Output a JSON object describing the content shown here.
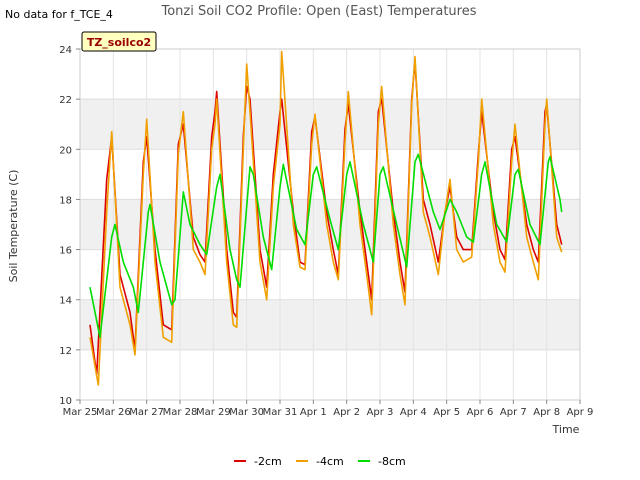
{
  "note": "No data for f_TCE_4",
  "badge": "TZ_soilco2",
  "chart_data": {
    "type": "line",
    "title": "Tonzi Soil CO2 Profile: Open (East) Temperatures",
    "xlabel": "Time",
    "ylabel": "Soil Temperature (C)",
    "xlim": [
      0,
      15
    ],
    "ylim": [
      10,
      24
    ],
    "x_ticks": [
      {
        "x": 0,
        "label": "Mar 25"
      },
      {
        "x": 1,
        "label": "Mar 26"
      },
      {
        "x": 2,
        "label": "Mar 27"
      },
      {
        "x": 3,
        "label": "Mar 28"
      },
      {
        "x": 4,
        "label": "Mar 29"
      },
      {
        "x": 5,
        "label": "Mar 30"
      },
      {
        "x": 6,
        "label": "Mar 31"
      },
      {
        "x": 7,
        "label": "Apr 1"
      },
      {
        "x": 8,
        "label": "Apr 2"
      },
      {
        "x": 9,
        "label": "Apr 3"
      },
      {
        "x": 10,
        "label": "Apr 4"
      },
      {
        "x": 11,
        "label": "Apr 5"
      },
      {
        "x": 12,
        "label": "Apr 6"
      },
      {
        "x": 13,
        "label": "Apr 7"
      },
      {
        "x": 14,
        "label": "Apr 8"
      },
      {
        "x": 15,
        "label": "Apr 9"
      }
    ],
    "y_ticks": [
      10,
      12,
      14,
      16,
      18,
      20,
      22,
      24
    ],
    "grid": true,
    "legend_position": "bottom-center",
    "x_units": "days since Mar 25 00:00",
    "series": [
      {
        "name": "-2cm",
        "color": "#dd0000",
        "points": [
          [
            0.3,
            13.0
          ],
          [
            0.5,
            11.0
          ],
          [
            0.8,
            18.8
          ],
          [
            0.95,
            20.5
          ],
          [
            1.2,
            15.0
          ],
          [
            1.5,
            13.5
          ],
          [
            1.65,
            12.0
          ],
          [
            1.9,
            19.5
          ],
          [
            2.0,
            20.5
          ],
          [
            2.25,
            16.0
          ],
          [
            2.5,
            13.0
          ],
          [
            2.75,
            12.8
          ],
          [
            2.95,
            20.2
          ],
          [
            3.1,
            21.0
          ],
          [
            3.4,
            16.5
          ],
          [
            3.6,
            15.8
          ],
          [
            3.75,
            15.5
          ],
          [
            3.95,
            20.5
          ],
          [
            4.05,
            21.5
          ],
          [
            4.1,
            22.3
          ],
          [
            4.4,
            16.0
          ],
          [
            4.6,
            13.5
          ],
          [
            4.7,
            13.3
          ],
          [
            4.9,
            20.5
          ],
          [
            5.0,
            22.5
          ],
          [
            5.1,
            22.0
          ],
          [
            5.4,
            16.0
          ],
          [
            5.6,
            14.5
          ],
          [
            5.8,
            19.0
          ],
          [
            6.0,
            21.5
          ],
          [
            6.05,
            22.0
          ],
          [
            6.4,
            17.5
          ],
          [
            6.6,
            15.5
          ],
          [
            6.75,
            15.4
          ],
          [
            6.95,
            20.7
          ],
          [
            7.05,
            21.3
          ],
          [
            7.4,
            17.5
          ],
          [
            7.6,
            16.0
          ],
          [
            7.75,
            15.0
          ],
          [
            7.95,
            20.8
          ],
          [
            8.05,
            21.8
          ],
          [
            8.4,
            17.5
          ],
          [
            8.6,
            15.5
          ],
          [
            8.75,
            14.0
          ],
          [
            8.95,
            21.5
          ],
          [
            9.05,
            22.0
          ],
          [
            9.4,
            17.5
          ],
          [
            9.6,
            15.5
          ],
          [
            9.75,
            14.3
          ],
          [
            9.95,
            22.0
          ],
          [
            10.05,
            23.5
          ],
          [
            10.3,
            18.0
          ],
          [
            10.5,
            17.0
          ],
          [
            10.75,
            15.5
          ],
          [
            10.95,
            17.5
          ],
          [
            11.1,
            18.5
          ],
          [
            11.3,
            16.5
          ],
          [
            11.5,
            16.0
          ],
          [
            11.75,
            16.0
          ],
          [
            11.95,
            19.8
          ],
          [
            12.05,
            21.5
          ],
          [
            12.4,
            17.5
          ],
          [
            12.6,
            16.0
          ],
          [
            12.75,
            15.6
          ],
          [
            12.95,
            20.0
          ],
          [
            13.05,
            20.5
          ],
          [
            13.4,
            17.0
          ],
          [
            13.6,
            16.0
          ],
          [
            13.75,
            15.5
          ],
          [
            13.95,
            21.5
          ],
          [
            14.0,
            21.8
          ],
          [
            14.3,
            17.0
          ],
          [
            14.45,
            16.2
          ]
        ]
      },
      {
        "name": "-4cm",
        "color": "#f0a000",
        "points": [
          [
            0.3,
            12.5
          ],
          [
            0.55,
            10.6
          ],
          [
            0.8,
            17.5
          ],
          [
            0.95,
            20.7
          ],
          [
            1.2,
            14.5
          ],
          [
            1.5,
            13.0
          ],
          [
            1.65,
            11.8
          ],
          [
            1.9,
            19.0
          ],
          [
            2.0,
            21.2
          ],
          [
            2.25,
            15.5
          ],
          [
            2.5,
            12.5
          ],
          [
            2.75,
            12.3
          ],
          [
            2.95,
            19.8
          ],
          [
            3.1,
            21.5
          ],
          [
            3.4,
            16.0
          ],
          [
            3.6,
            15.5
          ],
          [
            3.75,
            15.0
          ],
          [
            3.95,
            20.0
          ],
          [
            4.05,
            21.0
          ],
          [
            4.1,
            22.0
          ],
          [
            4.4,
            15.5
          ],
          [
            4.6,
            13.0
          ],
          [
            4.7,
            12.9
          ],
          [
            4.9,
            20.0
          ],
          [
            5.0,
            23.4
          ],
          [
            5.1,
            21.5
          ],
          [
            5.4,
            15.5
          ],
          [
            5.6,
            14.0
          ],
          [
            5.8,
            18.5
          ],
          [
            6.0,
            21.0
          ],
          [
            6.05,
            23.9
          ],
          [
            6.4,
            17.0
          ],
          [
            6.6,
            15.3
          ],
          [
            6.75,
            15.2
          ],
          [
            6.95,
            20.2
          ],
          [
            7.05,
            21.4
          ],
          [
            7.4,
            17.0
          ],
          [
            7.6,
            15.5
          ],
          [
            7.75,
            14.8
          ],
          [
            7.95,
            20.3
          ],
          [
            8.05,
            22.3
          ],
          [
            8.4,
            17.0
          ],
          [
            8.6,
            15.0
          ],
          [
            8.75,
            13.4
          ],
          [
            8.95,
            21.0
          ],
          [
            9.05,
            22.5
          ],
          [
            9.4,
            17.0
          ],
          [
            9.6,
            15.0
          ],
          [
            9.75,
            13.8
          ],
          [
            9.95,
            21.8
          ],
          [
            10.05,
            23.7
          ],
          [
            10.3,
            17.5
          ],
          [
            10.5,
            16.5
          ],
          [
            10.75,
            15.0
          ],
          [
            10.95,
            17.5
          ],
          [
            11.1,
            18.8
          ],
          [
            11.3,
            16.0
          ],
          [
            11.5,
            15.5
          ],
          [
            11.75,
            15.7
          ],
          [
            11.95,
            19.5
          ],
          [
            12.05,
            22.0
          ],
          [
            12.4,
            17.0
          ],
          [
            12.6,
            15.5
          ],
          [
            12.75,
            15.1
          ],
          [
            12.95,
            19.5
          ],
          [
            13.05,
            21.0
          ],
          [
            13.4,
            16.5
          ],
          [
            13.6,
            15.5
          ],
          [
            13.75,
            14.8
          ],
          [
            13.95,
            21.0
          ],
          [
            14.0,
            22.0
          ],
          [
            14.3,
            16.5
          ],
          [
            14.45,
            15.9
          ]
        ]
      },
      {
        "name": "-8cm",
        "color": "#00dd00",
        "points": [
          [
            0.3,
            14.5
          ],
          [
            0.6,
            12.5
          ],
          [
            0.95,
            16.5
          ],
          [
            1.05,
            17.0
          ],
          [
            1.3,
            15.5
          ],
          [
            1.6,
            14.5
          ],
          [
            1.75,
            13.5
          ],
          [
            2.05,
            17.5
          ],
          [
            2.1,
            17.8
          ],
          [
            2.4,
            15.5
          ],
          [
            2.75,
            13.8
          ],
          [
            2.85,
            14.0
          ],
          [
            3.1,
            18.3
          ],
          [
            3.3,
            17.0
          ],
          [
            3.6,
            16.2
          ],
          [
            3.8,
            15.8
          ],
          [
            4.1,
            18.5
          ],
          [
            4.2,
            19.0
          ],
          [
            4.5,
            16.0
          ],
          [
            4.7,
            14.8
          ],
          [
            4.8,
            14.5
          ],
          [
            5.1,
            19.3
          ],
          [
            5.2,
            19.0
          ],
          [
            5.5,
            16.5
          ],
          [
            5.75,
            15.2
          ],
          [
            6.0,
            18.5
          ],
          [
            6.1,
            19.4
          ],
          [
            6.5,
            16.8
          ],
          [
            6.75,
            16.2
          ],
          [
            7.0,
            19.0
          ],
          [
            7.1,
            19.3
          ],
          [
            7.5,
            17.2
          ],
          [
            7.75,
            16.0
          ],
          [
            8.0,
            19.0
          ],
          [
            8.1,
            19.5
          ],
          [
            8.5,
            17.0
          ],
          [
            8.8,
            15.5
          ],
          [
            9.0,
            19.0
          ],
          [
            9.1,
            19.3
          ],
          [
            9.5,
            17.0
          ],
          [
            9.8,
            15.3
          ],
          [
            10.05,
            19.5
          ],
          [
            10.15,
            19.8
          ],
          [
            10.6,
            17.5
          ],
          [
            10.8,
            16.8
          ],
          [
            11.1,
            18.0
          ],
          [
            11.3,
            17.5
          ],
          [
            11.6,
            16.5
          ],
          [
            11.8,
            16.3
          ],
          [
            12.05,
            19.0
          ],
          [
            12.15,
            19.5
          ],
          [
            12.5,
            17.0
          ],
          [
            12.8,
            16.3
          ],
          [
            13.05,
            19.0
          ],
          [
            13.15,
            19.2
          ],
          [
            13.5,
            17.0
          ],
          [
            13.8,
            16.2
          ],
          [
            14.05,
            19.5
          ],
          [
            14.1,
            19.7
          ],
          [
            14.4,
            18.0
          ],
          [
            14.45,
            17.5
          ]
        ]
      }
    ]
  }
}
